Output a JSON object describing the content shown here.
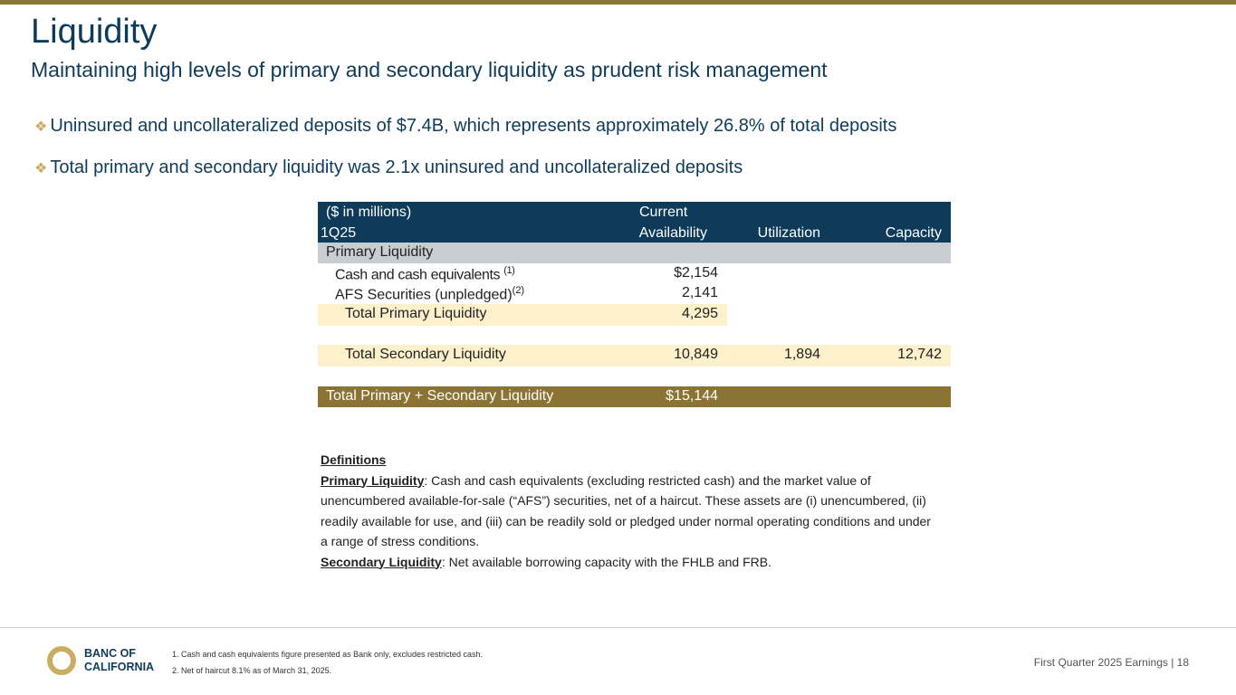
{
  "header": {
    "title": "Liquidity",
    "subtitle": "Maintaining high levels of primary and secondary liquidity as prudent risk management"
  },
  "bullets": [
    "Uninsured and uncollateralized deposits of $7.4B, which represents approximately 26.8% of total deposits",
    "Total primary and secondary liquidity was 2.1x uninsured and uncollateralized deposits"
  ],
  "table": {
    "header": {
      "units": "($ in millions)",
      "period": "1Q25",
      "col1_line1": "Current",
      "col1_line2": "Availability",
      "col2": "Utilization",
      "col3": "Capacity"
    },
    "section": "Primary Liquidity",
    "rows": [
      {
        "label": "Cash and cash equivalents",
        "note": "(1)",
        "availability": "$2,154"
      },
      {
        "label": "AFS Securities (unpledged)",
        "note": "(2)",
        "availability": "2,141"
      },
      {
        "label": "Total Primary Liquidity",
        "availability": "4,295"
      },
      {
        "label": "Total Secondary Liquidity",
        "availability": "10,849",
        "utilization": "1,894",
        "capacity": "12,742"
      },
      {
        "label": "Total Primary + Secondary Liquidity",
        "availability": "$15,144"
      }
    ]
  },
  "definitions": {
    "heading": "Definitions",
    "primary_term": "Primary Liquidity",
    "primary_text": ": Cash and cash equivalents (excluding restricted cash) and the market value of unencumbered available-for-sale (“AFS”) securities, net of a haircut.  These assets are (i) unencumbered, (ii) readily available for use, and (iii) can be readily sold or pledged under normal operating conditions and under a range of stress conditions.",
    "secondary_term": "Secondary Liquidity",
    "secondary_text": ": Net available borrowing capacity with the FHLB and FRB."
  },
  "footer": {
    "logo_line1": "BANC OF",
    "logo_line2": "CALIFORNIA",
    "notes": [
      "1.  Cash and cash equivalents figure presented as Bank only, excludes restricted cash.",
      "2.  Net of haircut 8.1% as of March 31, 2025."
    ],
    "page_label": "First Quarter 2025 Earnings |  18"
  },
  "colors": {
    "navy": "#0d3b59",
    "gold": "#8b7333",
    "cream": "#fdf1cc",
    "gray": "#c8cdd1"
  }
}
